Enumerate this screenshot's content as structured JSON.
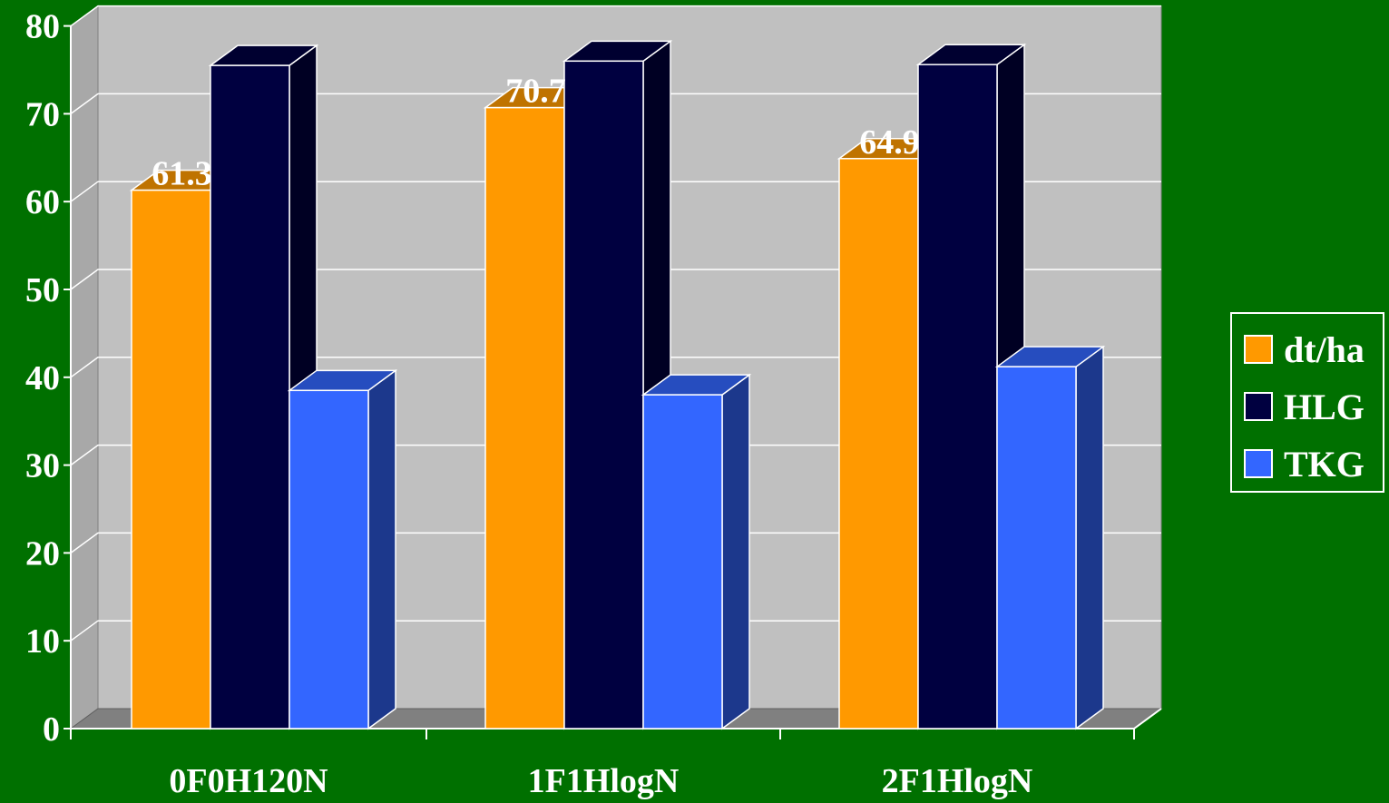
{
  "chart_data": {
    "type": "bar",
    "categories": [
      "0F0H120N",
      "1F1HlogN",
      "2F1HlogN"
    ],
    "series": [
      {
        "name": "dt/ha",
        "values": [
          61.3,
          70.7,
          64.9
        ],
        "color": "#FF9900",
        "labels": [
          "61.3",
          "70.7",
          "64.9"
        ]
      },
      {
        "name": "HLG",
        "values": [
          75.5,
          76.0,
          75.6
        ],
        "color": "#000040",
        "labels": []
      },
      {
        "name": "TKG",
        "values": [
          38.5,
          38.0,
          41.2
        ],
        "color": "#3366FF",
        "labels": []
      }
    ],
    "y_ticks": [
      "0",
      "10",
      "20",
      "30",
      "40",
      "50",
      "60",
      "70",
      "80"
    ],
    "ylim": [
      0,
      80
    ],
    "grid": true,
    "legend_position": "right",
    "style_3d": true,
    "colors": {
      "background": "#007000",
      "plot_wall": "#C0C0C0",
      "floor": "#808080",
      "text": "#FFFFFF"
    }
  }
}
